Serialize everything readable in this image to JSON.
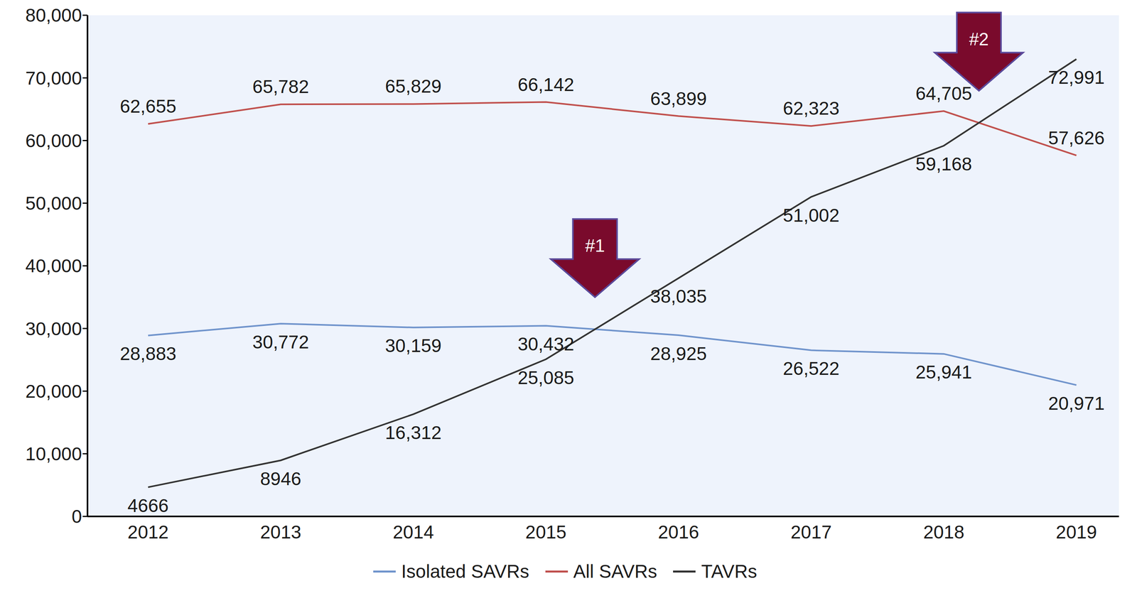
{
  "chart_data": {
    "type": "line",
    "categories": [
      "2012",
      "2013",
      "2014",
      "2015",
      "2016",
      "2017",
      "2018",
      "2019"
    ],
    "series": [
      {
        "name": "Isolated SAVRs",
        "color": "#7094cc",
        "values": [
          28883,
          30772,
          30159,
          30432,
          28925,
          26522,
          25941,
          20971
        ],
        "value_labels": [
          "28,883",
          "30,772",
          "30,159",
          "30,432",
          "28,925",
          "26,522",
          "25,941",
          "20,971"
        ]
      },
      {
        "name": "All SAVRs",
        "color": "#c0504d",
        "values": [
          62655,
          65782,
          65829,
          66142,
          63899,
          62323,
          64705,
          57626
        ],
        "value_labels": [
          "62,655",
          "65,782",
          "65,829",
          "66,142",
          "63,899",
          "62,323",
          "64,705",
          "57,626"
        ]
      },
      {
        "name": "TAVRs",
        "color": "#333333",
        "values": [
          4666,
          8946,
          16312,
          25085,
          38035,
          51002,
          59168,
          72991
        ],
        "value_labels": [
          "4666",
          "8946",
          "16,312",
          "25,085",
          "38,035",
          "51,002",
          "59,168",
          "72,991"
        ]
      }
    ],
    "ylim": [
      0,
      80000
    ],
    "yticks": [
      0,
      {
        "value": 10000,
        "label": "10,000"
      },
      {
        "value": 20000,
        "label": "20,000"
      },
      {
        "value": 30000,
        "label": "30,000"
      },
      {
        "value": 40000,
        "label": "40,000"
      },
      {
        "value": 50000,
        "label": "50,000"
      },
      {
        "value": 60000,
        "label": "60,000"
      },
      {
        "value": 70000,
        "label": "70,000"
      },
      {
        "value": 80000,
        "label": "80,000"
      }
    ],
    "grid": false,
    "data_labels": true,
    "legend": "bottom",
    "annotations": [
      {
        "text": "#1",
        "series": [
          "TAVRs",
          "Isolated SAVRs"
        ]
      },
      {
        "text": "#2",
        "series": [
          "TAVRs",
          "All SAVRs"
        ]
      }
    ]
  }
}
